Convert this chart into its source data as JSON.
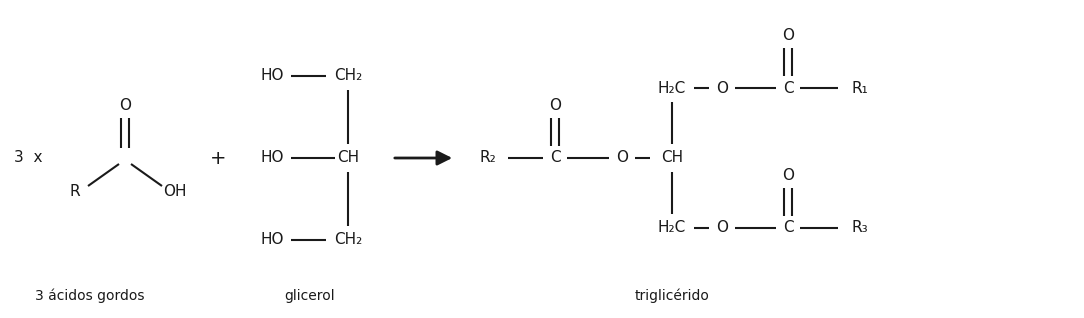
{
  "background_color": "#ffffff",
  "text_color": "#1a1a1a",
  "line_color": "#1a1a1a",
  "figsize": [
    10.84,
    3.18
  ],
  "dpi": 100,
  "label_acidos": "3 ácidos gordos",
  "label_glicerol": "glicerol",
  "label_triglic": "triglicérido"
}
